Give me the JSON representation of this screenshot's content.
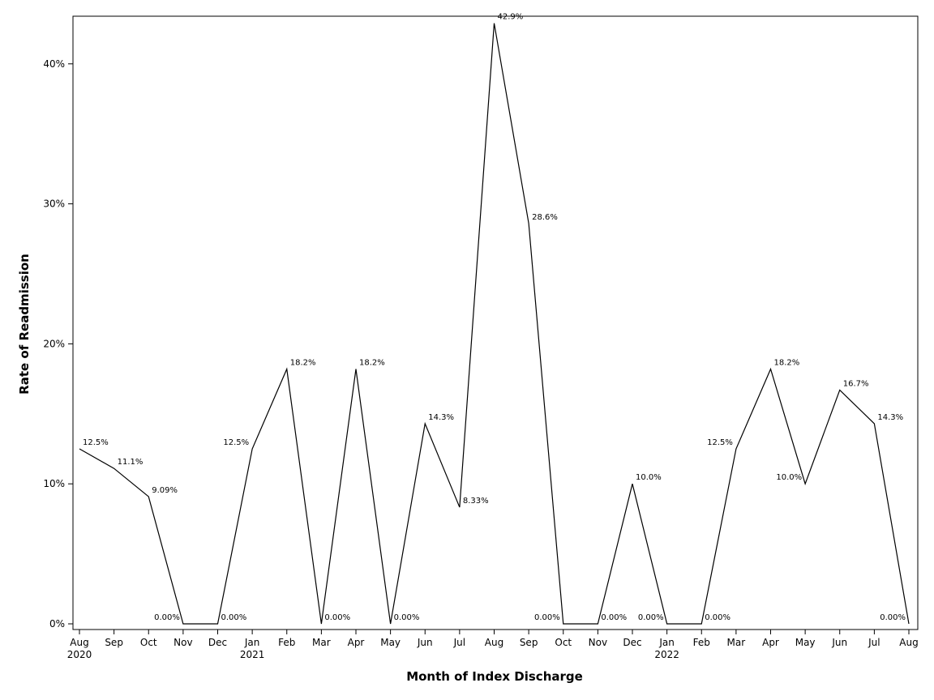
{
  "chart_data": {
    "type": "line",
    "title": "",
    "xlabel": "Month of Index Discharge",
    "ylabel": "Rate of Readmission",
    "ylim": [
      0,
      44
    ],
    "yticks": [
      0,
      10,
      20,
      30,
      40
    ],
    "ytick_labels": [
      "0%",
      "10%",
      "20%",
      "30%",
      "40%"
    ],
    "grid": false,
    "legend": "none",
    "line_color": "#000000",
    "x": [
      "Aug 2020",
      "Sep 2020",
      "Oct 2020",
      "Nov 2020",
      "Dec 2020",
      "Jan 2021",
      "Feb 2021",
      "Mar 2021",
      "Apr 2021",
      "May 2021",
      "Jun 2021",
      "Jul 2021",
      "Aug 2021",
      "Sep 2021",
      "Oct 2021",
      "Nov 2021",
      "Dec 2021",
      "Jan 2022",
      "Feb 2022",
      "Mar 2022",
      "Apr 2022",
      "May 2022",
      "Jun 2022",
      "Jul 2022",
      "Aug 2022"
    ],
    "xtick_month": [
      "Aug",
      "Sep",
      "Oct",
      "Nov",
      "Dec",
      "Jan",
      "Feb",
      "Mar",
      "Apr",
      "May",
      "Jun",
      "Jul",
      "Aug",
      "Sep",
      "Oct",
      "Nov",
      "Dec",
      "Jan",
      "Feb",
      "Mar",
      "Apr",
      "May",
      "Jun",
      "Jul",
      "Aug"
    ],
    "xtick_year": [
      "2020",
      "",
      "",
      "",
      "",
      "2021",
      "",
      "",
      "",
      "",
      "",
      "",
      "",
      "",
      "",
      "",
      "",
      "2022",
      "",
      "",
      "",
      "",
      "",
      "",
      ""
    ],
    "values": [
      12.5,
      11.1,
      9.09,
      0,
      0,
      12.5,
      18.2,
      0,
      18.2,
      0,
      14.3,
      8.33,
      42.9,
      28.6,
      0,
      0,
      10.0,
      0,
      0,
      12.5,
      18.2,
      10.0,
      16.7,
      14.3,
      0
    ],
    "data_labels": [
      "12.5%",
      "11.1%",
      "9.09%",
      "0.00%",
      "0.00%",
      "12.5%",
      "18.2%",
      "0.00%",
      "18.2%",
      "0.00%",
      "14.3%",
      "8.33%",
      "42.9%",
      "28.6%",
      "0.00%",
      "0.00%",
      "10.0%",
      "0.00%",
      "0.00%",
      "12.5%",
      "18.2%",
      "10.0%",
      "16.7%",
      "14.3%",
      "0.00%"
    ],
    "data_label_side": [
      "right",
      "right",
      "right",
      "left",
      "right",
      "left",
      "right",
      "right",
      "right",
      "right",
      "right",
      "right",
      "right",
      "right",
      "left",
      "right",
      "right",
      "left",
      "right",
      "left",
      "right",
      "left",
      "right",
      "right",
      "left"
    ]
  }
}
